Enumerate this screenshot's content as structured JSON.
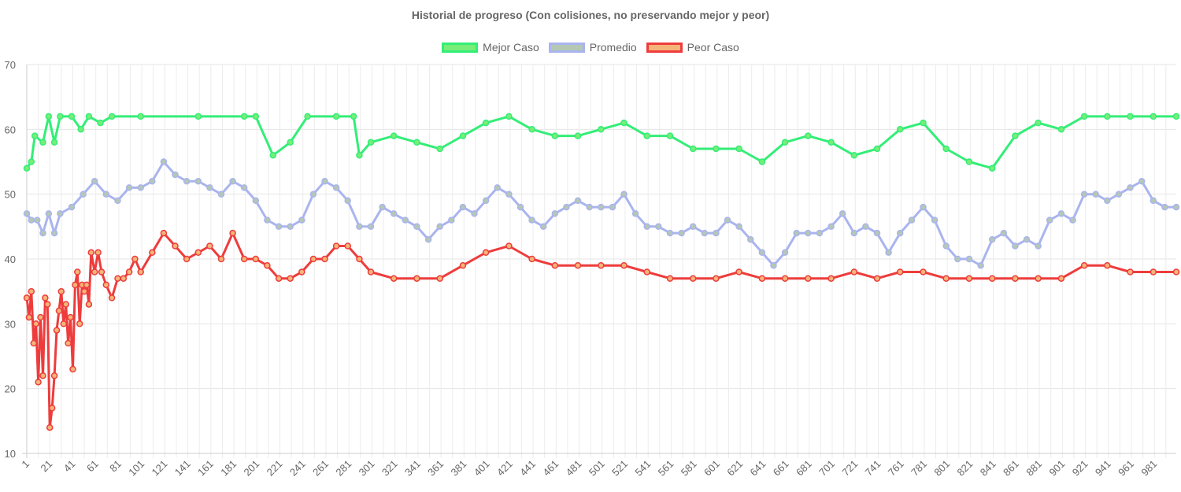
{
  "chart_data": {
    "type": "line",
    "title": "Historial de progreso (Con colisiones, no preservando mejor y peor)",
    "xlabel": "",
    "ylabel": "",
    "ylim": [
      10,
      70
    ],
    "yticks": [
      10,
      20,
      30,
      40,
      50,
      60,
      70
    ],
    "xlim": [
      1,
      1000
    ],
    "xticks": [
      1,
      21,
      41,
      61,
      81,
      101,
      121,
      141,
      161,
      181,
      201,
      221,
      241,
      261,
      281,
      301,
      321,
      341,
      361,
      381,
      401,
      421,
      441,
      461,
      481,
      501,
      521,
      541,
      561,
      581,
      601,
      621,
      641,
      661,
      681,
      701,
      721,
      741,
      761,
      781,
      801,
      821,
      841,
      861,
      881,
      901,
      921,
      941,
      961,
      981
    ],
    "grid": true,
    "legend_position": "top-center",
    "series": [
      {
        "name": "Mejor Caso",
        "color": "#33ee77",
        "fill": "#77ee77",
        "x": [
          1,
          5,
          8,
          15,
          20,
          25,
          30,
          40,
          48,
          55,
          65,
          75,
          100,
          150,
          190,
          200,
          215,
          230,
          245,
          270,
          285,
          290,
          300,
          320,
          340,
          360,
          380,
          400,
          420,
          440,
          460,
          480,
          500,
          520,
          540,
          560,
          580,
          600,
          620,
          640,
          660,
          680,
          700,
          720,
          740,
          760,
          780,
          800,
          820,
          840,
          860,
          880,
          900,
          920,
          940,
          960,
          980,
          1000
        ],
        "values": [
          54,
          55,
          59,
          58,
          62,
          58,
          62,
          62,
          60,
          62,
          61,
          62,
          62,
          62,
          62,
          62,
          56,
          58,
          62,
          62,
          62,
          56,
          58,
          59,
          58,
          57,
          59,
          61,
          62,
          60,
          59,
          59,
          60,
          61,
          59,
          59,
          57,
          57,
          57,
          55,
          58,
          59,
          58,
          56,
          57,
          60,
          61,
          57,
          55,
          54,
          59,
          61,
          60,
          62,
          62,
          62,
          62,
          62
        ]
      },
      {
        "name": "Promedio",
        "color": "#aab4ee",
        "fill": "#b4c8b4",
        "x": [
          1,
          5,
          10,
          15,
          20,
          25,
          30,
          40,
          50,
          60,
          70,
          80,
          90,
          100,
          110,
          120,
          130,
          140,
          150,
          160,
          170,
          180,
          190,
          200,
          210,
          220,
          230,
          240,
          250,
          260,
          270,
          280,
          290,
          300,
          310,
          320,
          330,
          340,
          350,
          360,
          370,
          380,
          390,
          400,
          410,
          420,
          430,
          440,
          450,
          460,
          470,
          480,
          490,
          500,
          510,
          520,
          530,
          540,
          550,
          560,
          570,
          580,
          590,
          600,
          610,
          620,
          630,
          640,
          650,
          660,
          670,
          680,
          690,
          700,
          710,
          720,
          730,
          740,
          750,
          760,
          770,
          780,
          790,
          800,
          810,
          820,
          830,
          840,
          850,
          860,
          870,
          880,
          890,
          900,
          910,
          920,
          930,
          940,
          950,
          960,
          970,
          980,
          990,
          1000
        ],
        "values": [
          47,
          46,
          46,
          44,
          47,
          44,
          47,
          48,
          50,
          52,
          50,
          49,
          51,
          51,
          52,
          55,
          53,
          52,
          52,
          51,
          50,
          52,
          51,
          49,
          46,
          45,
          45,
          46,
          50,
          52,
          51,
          49,
          45,
          45,
          48,
          47,
          46,
          45,
          43,
          45,
          46,
          48,
          47,
          49,
          51,
          50,
          48,
          46,
          45,
          47,
          48,
          49,
          48,
          48,
          48,
          50,
          47,
          45,
          45,
          44,
          44,
          45,
          44,
          44,
          46,
          45,
          43,
          41,
          39,
          41,
          44,
          44,
          44,
          45,
          47,
          44,
          45,
          44,
          41,
          44,
          46,
          48,
          46,
          42,
          40,
          40,
          39,
          43,
          44,
          42,
          43,
          42,
          46,
          47,
          46,
          50,
          50,
          49,
          50,
          51,
          52,
          49,
          48,
          48
        ]
      },
      {
        "name": "Peor Caso",
        "color": "#ee3c3c",
        "fill": "#f5b478",
        "x": [
          1,
          3,
          5,
          7,
          9,
          11,
          13,
          15,
          17,
          19,
          21,
          23,
          25,
          27,
          29,
          31,
          33,
          35,
          37,
          39,
          41,
          43,
          45,
          47,
          49,
          51,
          53,
          55,
          57,
          60,
          63,
          66,
          70,
          75,
          80,
          85,
          90,
          95,
          100,
          110,
          120,
          130,
          140,
          150,
          160,
          170,
          180,
          190,
          200,
          210,
          220,
          230,
          240,
          250,
          260,
          270,
          280,
          290,
          300,
          320,
          340,
          360,
          380,
          400,
          420,
          440,
          460,
          480,
          500,
          520,
          540,
          560,
          580,
          600,
          620,
          640,
          660,
          680,
          700,
          720,
          740,
          760,
          780,
          800,
          820,
          840,
          860,
          880,
          900,
          920,
          940,
          960,
          980,
          1000
        ],
        "values": [
          34,
          31,
          35,
          27,
          30,
          21,
          31,
          22,
          34,
          33,
          14,
          17,
          22,
          29,
          32,
          35,
          30,
          33,
          27,
          31,
          23,
          36,
          38,
          30,
          36,
          35,
          36,
          33,
          41,
          38,
          41,
          38,
          36,
          34,
          37,
          37,
          38,
          40,
          38,
          41,
          44,
          42,
          40,
          41,
          42,
          40,
          44,
          40,
          40,
          39,
          37,
          37,
          38,
          40,
          40,
          42,
          42,
          40,
          38,
          37,
          37,
          37,
          39,
          41,
          42,
          40,
          39,
          39,
          39,
          39,
          38,
          37,
          37,
          37,
          38,
          37,
          37,
          37,
          37,
          38,
          37,
          38,
          38,
          37,
          37,
          37,
          37,
          37,
          37,
          39,
          39,
          38,
          38,
          38
        ]
      }
    ]
  }
}
